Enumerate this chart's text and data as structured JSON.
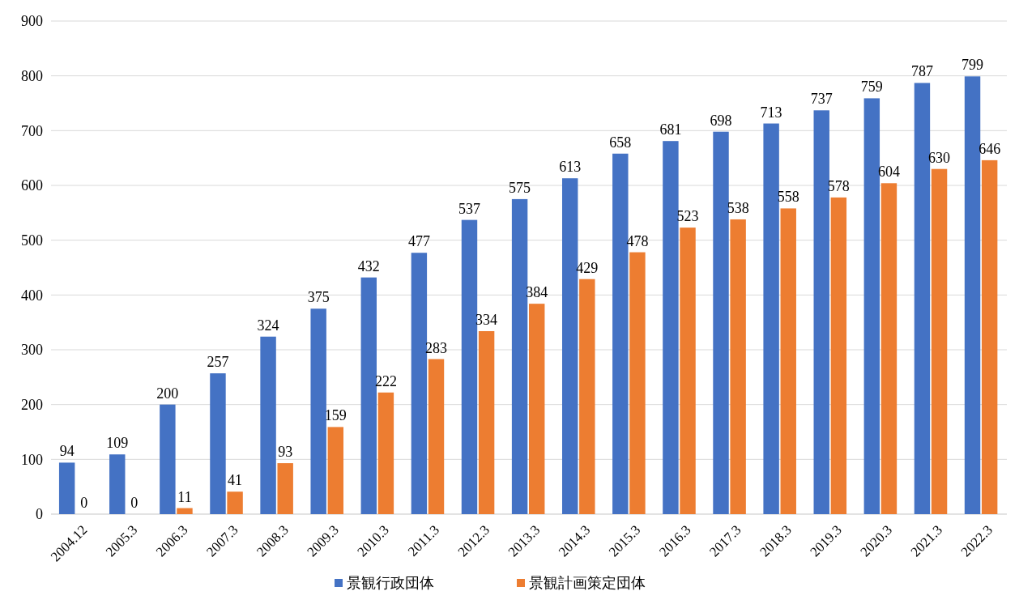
{
  "chart_data": {
    "type": "bar",
    "categories": [
      "2004.12",
      "2005.3",
      "2006.3",
      "2007.3",
      "2008.3",
      "2009.3",
      "2010.3",
      "2011.3",
      "2012.3",
      "2013.3",
      "2014.3",
      "2015.3",
      "2016.3",
      "2017.3",
      "2018.3",
      "2019.3",
      "2020.3",
      "2021.3",
      "2022.3"
    ],
    "series": [
      {
        "name": "景観行政団体",
        "color": "#4472c4",
        "values": [
          94,
          109,
          200,
          257,
          324,
          375,
          432,
          477,
          537,
          575,
          613,
          658,
          681,
          698,
          713,
          737,
          759,
          787,
          799
        ]
      },
      {
        "name": "景観計画策定団体",
        "color": "#ed7d31",
        "values": [
          0,
          0,
          11,
          41,
          93,
          159,
          222,
          283,
          334,
          384,
          429,
          478,
          523,
          538,
          558,
          578,
          604,
          630,
          646
        ]
      }
    ],
    "ylim": [
      0,
      900
    ],
    "yticks": [
      0,
      100,
      200,
      300,
      400,
      500,
      600,
      700,
      800,
      900
    ],
    "grid": "y",
    "legend": "bottom",
    "data_labels": true
  }
}
